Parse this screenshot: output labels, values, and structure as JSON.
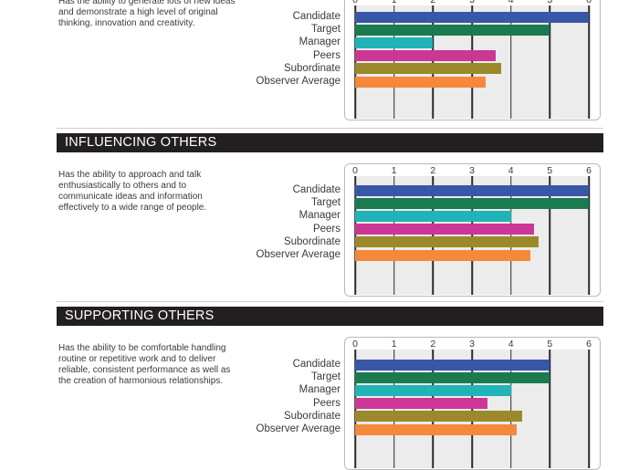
{
  "categories": [
    "Candidate",
    "Target",
    "Manager",
    "Peers",
    "Subordinate",
    "Observer Average"
  ],
  "colors": [
    "#3857a8",
    "#1c7a50",
    "#20b3b8",
    "#cc3795",
    "#9a8a2c",
    "#f5883a"
  ],
  "axis_ticks": [
    "0",
    "1",
    "2",
    "3",
    "4",
    "5",
    "6"
  ],
  "sections": [
    {
      "heading": "",
      "description": "Has the ability to generate lots of new ideas and demonstrate a high level of original thinking, innovation and creativity.",
      "values": [
        6.0,
        5.0,
        2.0,
        3.6,
        3.75,
        3.35
      ]
    },
    {
      "heading": "INFLUENCING OTHERS",
      "description": "Has the ability to approach and talk enthusiastically to others and to communicate ideas and information effectively to a wide range of people.",
      "values": [
        6.0,
        6.0,
        4.0,
        4.6,
        4.7,
        4.5
      ]
    },
    {
      "heading": "SUPPORTING OTHERS",
      "description": "Has the ability to be comfortable handling routine or repetitive work and to deliver reliable, consistent performance as well as the creation of harmonious relationships.",
      "values": [
        5.0,
        5.0,
        4.0,
        3.4,
        4.3,
        4.15
      ]
    }
  ],
  "chart_data": [
    {
      "type": "bar",
      "orientation": "horizontal",
      "categories": [
        "Candidate",
        "Target",
        "Manager",
        "Peers",
        "Subordinate",
        "Observer Average"
      ],
      "values": [
        6.0,
        5.0,
        2.0,
        3.6,
        3.75,
        3.35
      ],
      "xlim": [
        0,
        6
      ],
      "grid": true
    },
    {
      "type": "bar",
      "orientation": "horizontal",
      "title": "INFLUENCING OTHERS",
      "categories": [
        "Candidate",
        "Target",
        "Manager",
        "Peers",
        "Subordinate",
        "Observer Average"
      ],
      "values": [
        6.0,
        6.0,
        4.0,
        4.6,
        4.7,
        4.5
      ],
      "xlim": [
        0,
        6
      ],
      "grid": true
    },
    {
      "type": "bar",
      "orientation": "horizontal",
      "title": "SUPPORTING OTHERS",
      "categories": [
        "Candidate",
        "Target",
        "Manager",
        "Peers",
        "Subordinate",
        "Observer Average"
      ],
      "values": [
        5.0,
        5.0,
        4.0,
        3.4,
        4.3,
        4.15
      ],
      "xlim": [
        0,
        6
      ],
      "grid": true
    }
  ]
}
